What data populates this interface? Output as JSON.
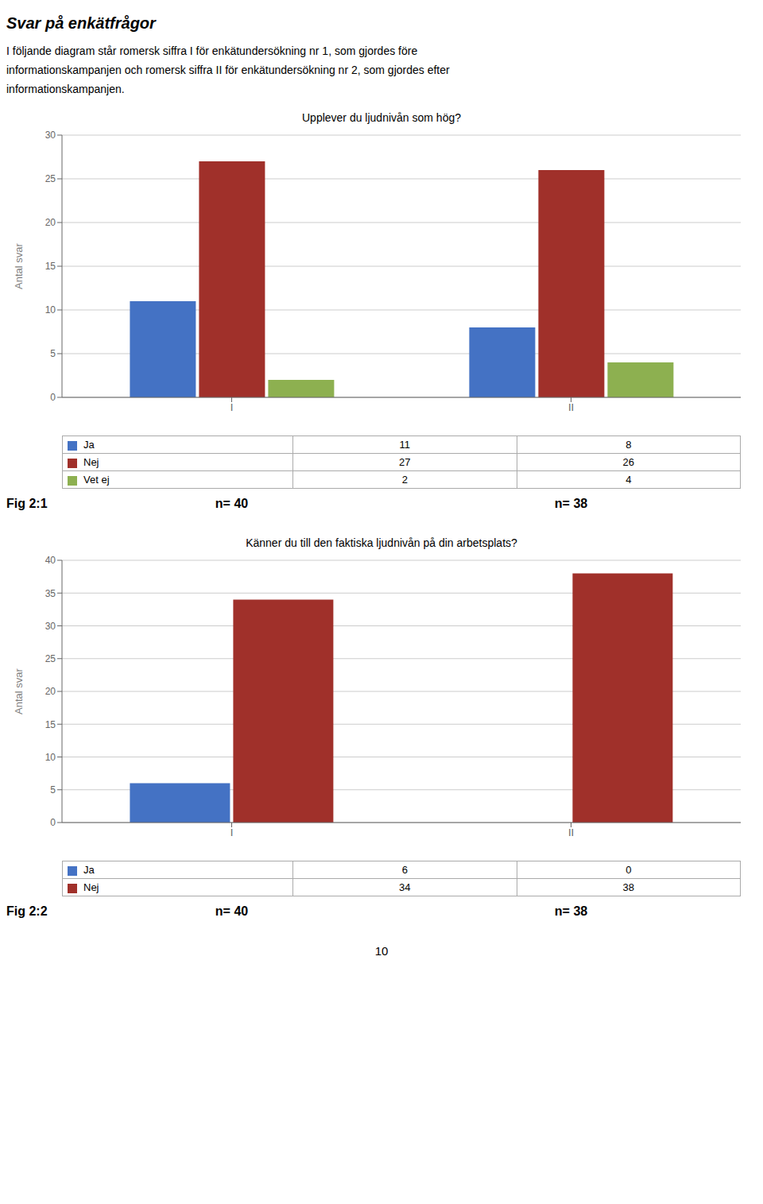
{
  "title": "Svar på enkätfrågor",
  "subtitle": [
    "I följande diagram står romersk siffra I för enkätundersökning nr 1, som gjordes före",
    "informationskampanjen och romersk siffra II för enkätundersökning nr 2, som gjordes efter",
    "informationskampanjen."
  ],
  "annotations": [
    "10"
  ],
  "chart_data": [
    {
      "type": "bar",
      "title": "Upplever du ljudnivån som hög?",
      "ylabel": "Antal svar",
      "categories": [
        "I",
        "II"
      ],
      "series": [
        {
          "name": "Ja",
          "color": "#4472C4",
          "values": [
            11,
            8
          ]
        },
        {
          "name": "Nej",
          "color": "#A0302A",
          "values": [
            27,
            26
          ]
        },
        {
          "name": "Vet ej",
          "color": "#8DB050",
          "values": [
            2,
            4
          ]
        }
      ],
      "ylim": [
        0,
        30
      ],
      "yticks": [
        0,
        5,
        10,
        15,
        20,
        25,
        30
      ],
      "grid": true,
      "annotations": [
        "Fig 2:1",
        "n= 40",
        "n= 38"
      ]
    },
    {
      "type": "bar",
      "title": "Känner du till den faktiska ljudnivån på din arbetsplats?",
      "ylabel": "Antal svar",
      "categories": [
        "I",
        "II"
      ],
      "series": [
        {
          "name": "Ja",
          "color": "#4472C4",
          "values": [
            6,
            0
          ]
        },
        {
          "name": "Nej",
          "color": "#A0302A",
          "values": [
            34,
            38
          ]
        }
      ],
      "ylim": [
        0,
        40
      ],
      "yticks": [
        0,
        5,
        10,
        15,
        20,
        25,
        30,
        35,
        40
      ],
      "grid": true,
      "annotations": [
        "Fig 2:2",
        "n= 40",
        "n= 38"
      ]
    }
  ]
}
